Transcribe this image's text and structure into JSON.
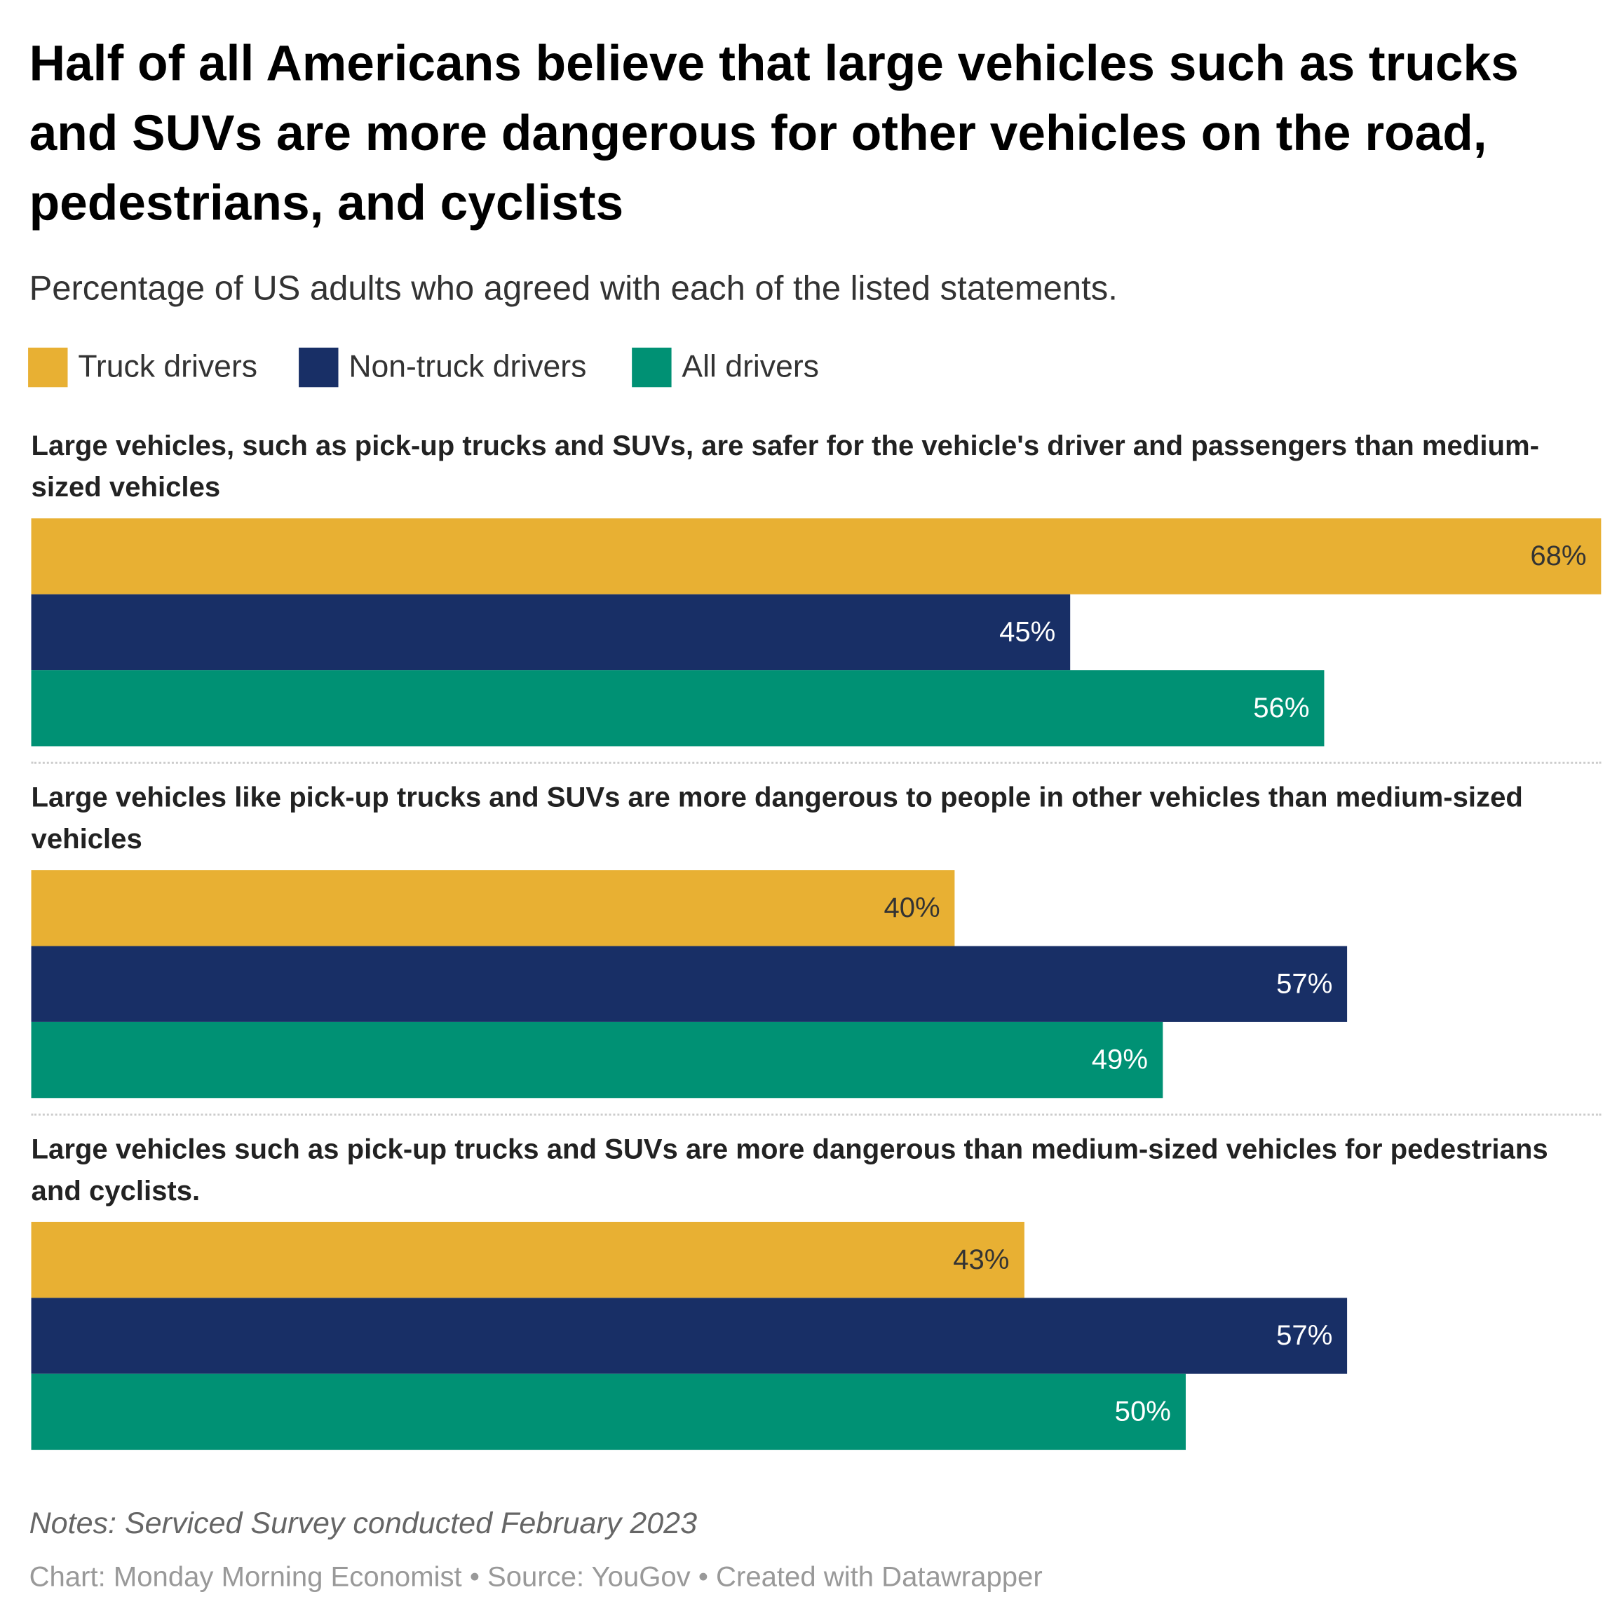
{
  "chart_data": {
    "type": "bar",
    "orientation": "horizontal",
    "title": "Half of all Americans believe that large vehicles such as trucks and SUVs are more dangerous for other vehicles on the road, pedestrians, and cyclists",
    "subtitle": "Percentage of US adults who agreed with each of the listed statements.",
    "categories": [
      "Large vehicles, such as pick-up trucks and SUVs, are safer for the vehicle's driver and passengers than medium-sized vehicles",
      "Large vehicles like pick-up trucks and SUVs are more dangerous to people in other vehicles than medium-sized vehicles",
      "Large vehicles such as pick-up trucks and SUVs are more dangerous than medium-sized vehicles for pedestrians and cyclists."
    ],
    "series": [
      {
        "name": "Truck drivers",
        "color": "#e8b033",
        "values": [
          68,
          40,
          43
        ],
        "value_labels": [
          "68%",
          "40%",
          "43%"
        ]
      },
      {
        "name": "Non-truck drivers",
        "color": "#182f66",
        "values": [
          45,
          57,
          57
        ],
        "value_labels": [
          "45%",
          "57%",
          "57%"
        ]
      },
      {
        "name": "All drivers",
        "color": "#009174",
        "values": [
          56,
          49,
          50
        ],
        "value_labels": [
          "56%",
          "49%",
          "50%"
        ]
      }
    ],
    "notes": "Notes: Serviced Survey conducted February 2023",
    "footer": "Chart: Monday Morning Economist • Source: YouGov • Created with Datawrapper"
  }
}
